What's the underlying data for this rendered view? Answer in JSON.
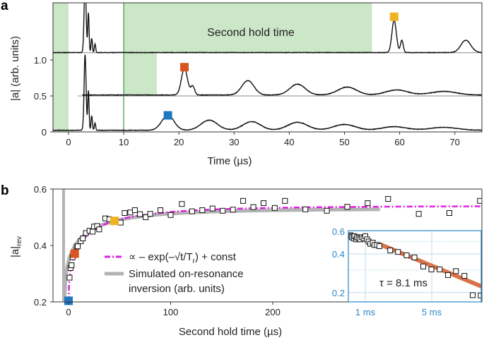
{
  "chart_data": [
    {
      "panel": "a",
      "type": "line",
      "xlabel": "Time (µs)",
      "ylabel": "|a| (arb. units)",
      "xlim": [
        -2.8,
        75
      ],
      "ylim": [
        0,
        1.8
      ],
      "xticks": [
        0,
        10,
        20,
        30,
        40,
        50,
        60,
        70
      ],
      "yticks": [
        {
          "v": 0,
          "label": "0"
        },
        {
          "v": 0.5,
          "label": "0.5"
        },
        {
          "v": 1.0,
          "label": "1.0"
        }
      ],
      "annotation": "Second hold time",
      "shaded_regions": [
        {
          "x": [
            -2.8,
            0
          ],
          "y": [
            0,
            1.8
          ]
        },
        {
          "x": [
            10,
            55
          ],
          "y": [
            1.1,
            1.8
          ]
        },
        {
          "x": [
            10,
            16
          ],
          "y": [
            0.5,
            1.1
          ]
        }
      ],
      "vline_x": 10,
      "traces": [
        {
          "offset": 0,
          "start": -2.8,
          "baseline": 0.02,
          "peaks": [
            [
              3.0,
              1.05,
              0.18
            ],
            [
              3.6,
              0.55,
              0.12
            ],
            [
              4.2,
              0.2,
              0.12
            ],
            [
              4.8,
              0.1,
              0.12
            ],
            [
              18,
              0.21,
              1.1
            ],
            [
              25.5,
              0.14,
              1.5
            ],
            [
              33.2,
              0.12,
              1.6
            ],
            [
              41.5,
              0.11,
              1.8
            ],
            [
              50,
              0.08,
              2.0
            ],
            [
              59,
              0.05,
              2.2
            ],
            [
              68,
              0.04,
              2.5
            ]
          ],
          "marker": {
            "x": 18,
            "y": 0.23,
            "color": "#1f77c0"
          }
        },
        {
          "offset": 0.5,
          "start": 2.5,
          "baseline": 0.01,
          "peaks": [
            [
              21,
              0.37,
              0.55
            ],
            [
              22.5,
              0.12,
              0.35
            ],
            [
              32.5,
              0.2,
              1.1
            ],
            [
              41.5,
              0.15,
              1.4
            ],
            [
              50.5,
              0.11,
              1.7
            ],
            [
              59.5,
              0.07,
              2.0
            ],
            [
              68,
              0.05,
              2.3
            ]
          ],
          "marker": {
            "x": 21,
            "y": 0.9,
            "color": "#d9541e"
          }
        },
        {
          "offset": 1.1,
          "start": -2.8,
          "baseline": 0.0,
          "peaks": [
            [
              3.0,
              1.0,
              0.18
            ],
            [
              3.6,
              0.55,
              0.12
            ],
            [
              4.2,
              0.2,
              0.12
            ],
            [
              4.8,
              0.12,
              0.12
            ],
            [
              59,
              0.45,
              0.4
            ],
            [
              60.4,
              0.17,
              0.25
            ],
            [
              72,
              0.17,
              0.9
            ]
          ],
          "marker": {
            "x": 59,
            "y": 1.6,
            "color": "#f0b323"
          }
        }
      ]
    },
    {
      "panel": "b",
      "type": "scatter",
      "xlabel": "Second hold time (µs)",
      "ylabel": "|a|",
      "ylabel_sub": "rev",
      "xlim": [
        -15,
        405
      ],
      "ylim": [
        0.2,
        0.6
      ],
      "xticks": [
        0,
        100,
        200
      ],
      "yticks": [
        {
          "v": 0.2,
          "label": "0.2"
        },
        {
          "v": 0.4,
          "label": "0.4"
        },
        {
          "v": 0.6,
          "label": "0.6"
        }
      ],
      "points": [
        [
          1,
          0.286
        ],
        [
          2,
          0.32
        ],
        [
          3,
          0.33
        ],
        [
          4,
          0.358
        ],
        [
          8,
          0.396
        ],
        [
          9,
          0.397
        ],
        [
          12,
          0.415
        ],
        [
          14,
          0.425
        ],
        [
          17,
          0.444
        ],
        [
          20.6,
          0.452
        ],
        [
          23.6,
          0.449
        ],
        [
          25,
          0.467
        ],
        [
          28,
          0.469
        ],
        [
          30,
          0.457
        ],
        [
          36,
          0.496
        ],
        [
          40,
          0.493
        ],
        [
          51,
          0.481
        ],
        [
          55,
          0.515
        ],
        [
          60.5,
          0.517
        ],
        [
          65,
          0.525
        ],
        [
          70,
          0.511
        ],
        [
          75.6,
          0.5
        ],
        [
          80,
          0.512
        ],
        [
          90,
          0.525
        ],
        [
          100,
          0.508
        ],
        [
          111,
          0.547
        ],
        [
          121,
          0.521
        ],
        [
          131,
          0.525
        ],
        [
          141,
          0.531
        ],
        [
          151,
          0.523
        ],
        [
          161,
          0.527
        ],
        [
          171,
          0.558
        ],
        [
          181,
          0.536
        ],
        [
          191,
          0.55
        ],
        [
          202,
          0.533
        ],
        [
          212,
          0.558
        ],
        [
          232,
          0.528
        ],
        [
          253,
          0.523
        ],
        [
          273,
          0.537
        ],
        [
          293,
          0.55
        ],
        [
          313,
          0.565
        ],
        [
          343,
          0.512
        ],
        [
          373,
          0.515
        ],
        [
          403,
          0.558
        ]
      ],
      "highlighted": [
        {
          "x": 0,
          "y": 0.204,
          "color": "#1f77c0"
        },
        {
          "x": 6,
          "y": 0.371,
          "color": "#d9541e"
        },
        {
          "x": 45,
          "y": 0.487,
          "color": "#f0b323"
        }
      ],
      "legend": [
        {
          "label": "∝ – exp(–√t/T",
          "sub": "r",
          "tail": ") + const",
          "color": "#e020e0",
          "style": "dash-dot"
        },
        {
          "label": "Simulated on-resonance",
          "label2": "inversion (arb. units)",
          "color": "#b3b3b3",
          "style": "solid"
        }
      ]
    },
    {
      "panel": "b-inset",
      "type": "scatter",
      "yscale": "log",
      "xlim": [
        0,
        8
      ],
      "ylim": [
        0.18,
        0.6
      ],
      "xticks": [
        {
          "v": 1,
          "label": "1 ms"
        },
        {
          "v": 5,
          "label": "5 ms"
        }
      ],
      "yticks": [
        {
          "v": 0.2,
          "label": "0.2"
        },
        {
          "v": 0.4,
          "label": "0.4"
        },
        {
          "v": 0.6,
          "label": "0.6"
        }
      ],
      "annotation": "τ = 8.1 ms",
      "tau_ms": 8.1,
      "fit_color": "#d9734a",
      "axis_color": "#2a86c4",
      "points": [
        [
          0.1,
          0.56
        ],
        [
          0.15,
          0.55
        ],
        [
          0.2,
          0.54
        ],
        [
          0.3,
          0.53
        ],
        [
          0.35,
          0.55
        ],
        [
          0.45,
          0.52
        ],
        [
          0.5,
          0.54
        ],
        [
          0.6,
          0.53
        ],
        [
          0.7,
          0.52
        ],
        [
          0.8,
          0.54
        ],
        [
          0.9,
          0.53
        ],
        [
          1.0,
          0.55
        ],
        [
          1.1,
          0.52
        ],
        [
          1.2,
          0.5
        ],
        [
          1.3,
          0.48
        ],
        [
          1.45,
          0.49
        ],
        [
          1.55,
          0.47
        ],
        [
          1.7,
          0.47
        ],
        [
          1.85,
          0.46
        ],
        [
          2.5,
          0.426
        ],
        [
          2.97,
          0.415
        ],
        [
          3.49,
          0.39
        ],
        [
          3.96,
          0.376
        ],
        [
          4.49,
          0.32
        ],
        [
          4.98,
          0.303
        ],
        [
          5.48,
          0.303
        ],
        [
          5.98,
          0.274
        ],
        [
          6.46,
          0.294
        ],
        [
          6.97,
          0.27
        ],
        [
          7.47,
          0.191
        ],
        [
          7.95,
          0.19
        ]
      ]
    }
  ],
  "panel_labels": [
    "a",
    "b"
  ]
}
